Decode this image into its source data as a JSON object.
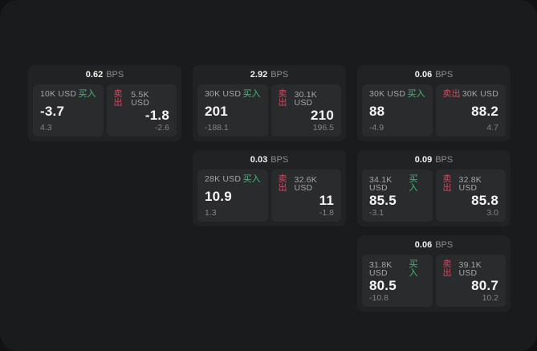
{
  "colors": {
    "panel_bg": "#1a1b1c",
    "card_bg": "#212223",
    "inner_bg": "#2a2b2c",
    "buy": "#3fbf78",
    "sell": "#d04a60"
  },
  "labels": {
    "spread_unit": "BPS",
    "buy_action": "买入",
    "sell_action": "卖出"
  },
  "cards": [
    {
      "row": 1,
      "col": 1,
      "bps": "0.62",
      "unit": "BPS",
      "buy": {
        "size": "10K USD",
        "action": "买入",
        "price": "-3.7",
        "delta": "4.3"
      },
      "sell": {
        "size": "5.5K USD",
        "action": "卖出",
        "price": "-1.8",
        "delta": "-2.6"
      }
    },
    {
      "row": 1,
      "col": 2,
      "bps": "2.92",
      "unit": "BPS",
      "buy": {
        "size": "30K USD",
        "action": "买入",
        "price": "201",
        "delta": "-188.1"
      },
      "sell": {
        "size": "30.1K USD",
        "action": "卖出",
        "price": "210",
        "delta": "196.5"
      }
    },
    {
      "row": 1,
      "col": 3,
      "bps": "0.06",
      "unit": "BPS",
      "buy": {
        "size": "30K USD",
        "action": "买入",
        "price": "88",
        "delta": "-4.9"
      },
      "sell": {
        "size": "30K USD",
        "action": "卖出",
        "price": "88.2",
        "delta": "4.7"
      }
    },
    {
      "row": 2,
      "col": 2,
      "bps": "0.03",
      "unit": "BPS",
      "buy": {
        "size": "28K USD",
        "action": "买入",
        "price": "10.9",
        "delta": "1.3"
      },
      "sell": {
        "size": "32.6K USD",
        "action": "卖出",
        "price": "11",
        "delta": "-1.8"
      }
    },
    {
      "row": 2,
      "col": 3,
      "bps": "0.09",
      "unit": "BPS",
      "buy": {
        "size": "34.1K USD",
        "action": "买入",
        "price": "85.5",
        "delta": "-3.1"
      },
      "sell": {
        "size": "32.8K USD",
        "action": "卖出",
        "price": "85.8",
        "delta": "3.0"
      }
    },
    {
      "row": 3,
      "col": 3,
      "bps": "0.06",
      "unit": "BPS",
      "buy": {
        "size": "31.8K USD",
        "action": "买入",
        "price": "80.5",
        "delta": "-10.8"
      },
      "sell": {
        "size": "39.1K USD",
        "action": "卖出",
        "price": "80.7",
        "delta": "10.2"
      }
    }
  ]
}
